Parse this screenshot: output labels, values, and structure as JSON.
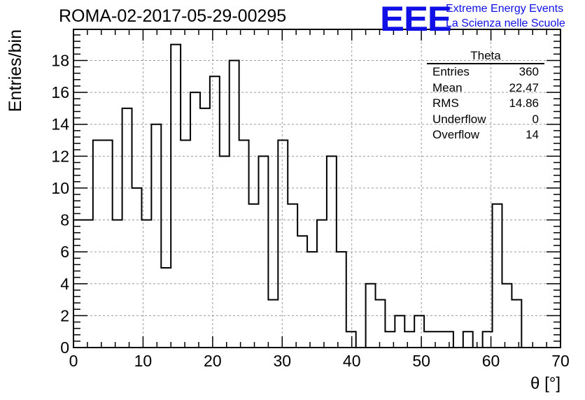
{
  "title": "ROMA-02-2017-05-29-00295",
  "logo": {
    "mark": "EEE",
    "line1": "Extreme Energy Events",
    "line2": "La Scienza nelle Scuole",
    "color": "#1010e6"
  },
  "stats": {
    "name": "Theta",
    "rows": [
      {
        "label": "Entries",
        "value": "360"
      },
      {
        "label": "Mean",
        "value": "22.47"
      },
      {
        "label": "RMS",
        "value": "14.86"
      },
      {
        "label": "Underflow",
        "value": "0"
      },
      {
        "label": "Overflow",
        "value": "14"
      }
    ]
  },
  "chart_data": {
    "type": "bar",
    "style": "step-histogram",
    "xlabel": "θ [°]",
    "ylabel": "Entries/bin",
    "xlim": [
      0,
      70
    ],
    "ylim": [
      0,
      19.95
    ],
    "xticks": [
      0,
      10,
      20,
      30,
      40,
      50,
      60,
      70
    ],
    "yticks": [
      0,
      2,
      4,
      6,
      8,
      10,
      12,
      14,
      16,
      18
    ],
    "grid": true,
    "bin_width": 1.4,
    "bins_start": 0,
    "values": [
      8,
      8,
      13,
      13,
      8,
      15,
      10,
      8,
      14,
      5,
      19,
      13,
      16,
      15,
      17,
      12,
      18,
      13,
      9,
      12,
      3,
      13,
      9,
      7,
      6,
      8,
      12,
      6,
      1,
      0,
      4,
      3,
      1,
      2,
      1,
      2,
      1,
      1,
      1,
      0,
      1,
      0,
      1,
      9,
      4,
      3,
      0,
      0,
      0,
      0
    ]
  }
}
